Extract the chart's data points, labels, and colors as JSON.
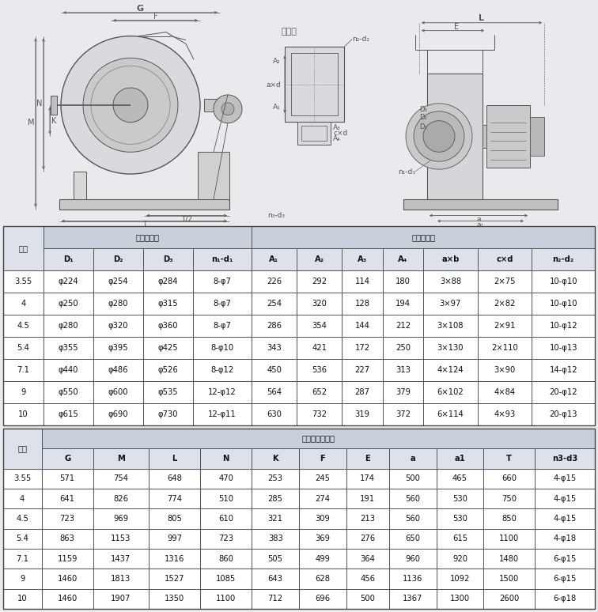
{
  "bg_color": "#e8eaed",
  "drawing_bg": "#dde0e5",
  "table_bg": "#ffffff",
  "header_bg": "#c8d0dc",
  "subheader_bg": "#dde2ea",
  "border_color": "#444444",
  "line_color": "#555555",
  "text_color": "#111111",
  "table1_title1": "进风口尺寸",
  "table1_title2": "出风口尺寸",
  "table2_title": "外形及安装尺寸",
  "col_label": "机号",
  "table1_headers": [
    "D₁",
    "D₂",
    "D₃",
    "n₁-d₁",
    "A₁",
    "A₂",
    "A₃",
    "A₄",
    "a×b",
    "c×d",
    "n₂-d₂"
  ],
  "table1_rows": [
    [
      "3.55",
      "φ224",
      "φ254",
      "φ284",
      "8-φ7",
      "226",
      "292",
      "114",
      "180",
      "3×88",
      "2×75",
      "10-φ10"
    ],
    [
      "4",
      "φ250",
      "φ280",
      "φ315",
      "8-φ7",
      "254",
      "320",
      "128",
      "194",
      "3×97",
      "2×82",
      "10-φ10"
    ],
    [
      "4.5",
      "φ280",
      "φ320",
      "φ360",
      "8-φ7",
      "286",
      "354",
      "144",
      "212",
      "3×108",
      "2×91",
      "10-φ12"
    ],
    [
      "5.4",
      "φ355",
      "φ395",
      "φ425",
      "8-φ10",
      "343",
      "421",
      "172",
      "250",
      "3×130",
      "2×110",
      "10-φ13"
    ],
    [
      "7.1",
      "φ440",
      "φ486",
      "φ526",
      "8-φ12",
      "450",
      "536",
      "227",
      "313",
      "4×124",
      "3×90",
      "14-φ12"
    ],
    [
      "9",
      "φ550",
      "φ600",
      "φ535",
      "12-φ12",
      "564",
      "652",
      "287",
      "379",
      "6×102",
      "4×84",
      "20-φ12"
    ],
    [
      "10",
      "φ615",
      "φ690",
      "φ730",
      "12-φ11",
      "630",
      "732",
      "319",
      "372",
      "6×114",
      "4×93",
      "20-φ13"
    ]
  ],
  "table2_headers": [
    "G",
    "M",
    "L",
    "N",
    "K",
    "F",
    "E",
    "a",
    "a1",
    "T",
    "n3-d3"
  ],
  "table2_rows": [
    [
      "3.55",
      "571",
      "754",
      "648",
      "470",
      "253",
      "245",
      "174",
      "500",
      "465",
      "660",
      "4-φ15"
    ],
    [
      "4",
      "641",
      "826",
      "774",
      "510",
      "285",
      "274",
      "191",
      "560",
      "530",
      "750",
      "4-φ15"
    ],
    [
      "4.5",
      "723",
      "969",
      "805",
      "610",
      "321",
      "309",
      "213",
      "560",
      "530",
      "850",
      "4-φ15"
    ],
    [
      "5.4",
      "863",
      "1153",
      "997",
      "723",
      "383",
      "369",
      "276",
      "650",
      "615",
      "1100",
      "4-φ18"
    ],
    [
      "7.1",
      "1159",
      "1437",
      "1316",
      "860",
      "505",
      "499",
      "364",
      "960",
      "920",
      "1480",
      "6-φ15"
    ],
    [
      "9",
      "1460",
      "1813",
      "1527",
      "1085",
      "643",
      "628",
      "456",
      "1136",
      "1092",
      "1500",
      "6-φ15"
    ],
    [
      "10",
      "1460",
      "1907",
      "1350",
      "1100",
      "712",
      "696",
      "500",
      "1367",
      "1300",
      "2600",
      "6-φ18"
    ]
  ]
}
